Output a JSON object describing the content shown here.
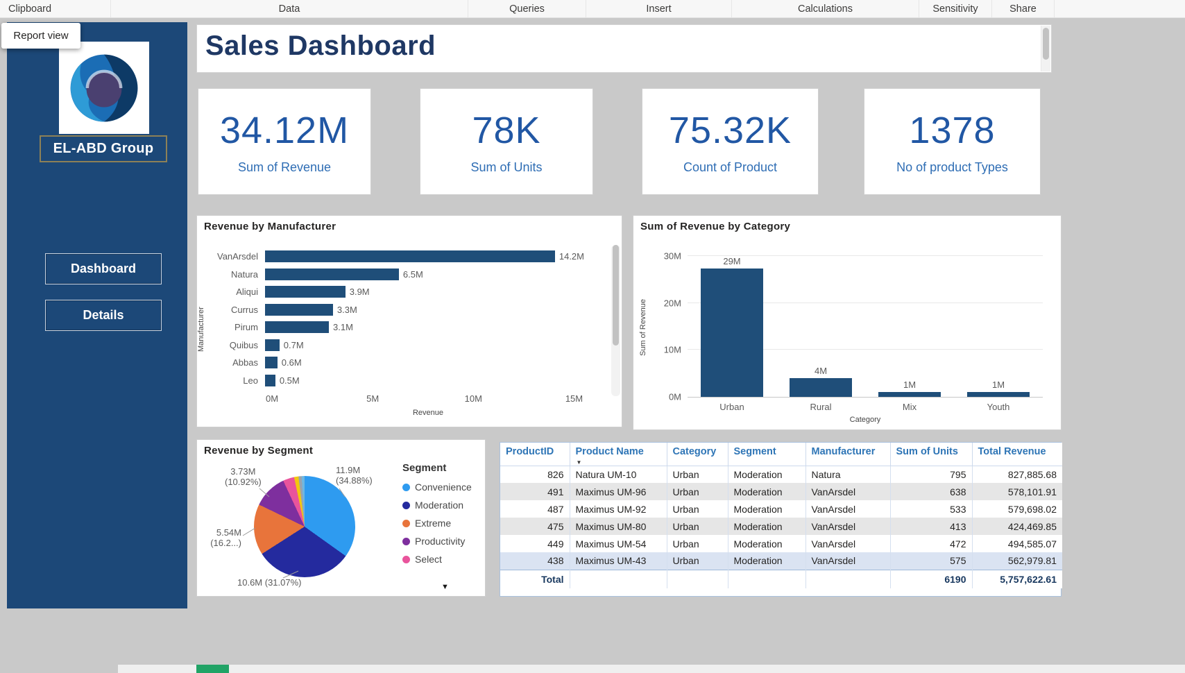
{
  "menu": {
    "items": [
      {
        "label": "Clipboard"
      },
      {
        "label": "Data"
      },
      {
        "label": "Queries"
      },
      {
        "label": "Insert"
      },
      {
        "label": "Calculations"
      },
      {
        "label": "Sensitivity"
      },
      {
        "label": "Share"
      }
    ]
  },
  "view_label": "Report view",
  "sidebar": {
    "brand": "EL-ABD Group",
    "nav": [
      {
        "label": "Dashboard"
      },
      {
        "label": "Details"
      }
    ]
  },
  "page": {
    "title": "Sales Dashboard"
  },
  "kpis": [
    {
      "value": "34.12M",
      "label": "Sum of Revenue"
    },
    {
      "value": "78K",
      "label": "Sum of Units"
    },
    {
      "value": "75.32K",
      "label": "Count of Product"
    },
    {
      "value": "1378",
      "label": "No of product Types"
    }
  ],
  "chart_data": [
    {
      "type": "bar",
      "orientation": "horizontal",
      "title": "Revenue by Manufacturer",
      "xlabel": "Revenue",
      "ylabel": "Manufacturer",
      "categories": [
        "VanArsdel",
        "Natura",
        "Aliqui",
        "Currus",
        "Pirum",
        "Quibus",
        "Abbas",
        "Leo"
      ],
      "values": [
        14.2,
        6.5,
        3.9,
        3.3,
        3.1,
        0.7,
        0.6,
        0.5
      ],
      "labels": [
        "14.2M",
        "6.5M",
        "3.9M",
        "3.3M",
        "3.1M",
        "0.7M",
        "0.6M",
        "0.5M"
      ],
      "x_ticks": [
        {
          "value": 0,
          "label": "0M"
        },
        {
          "value": 5,
          "label": "5M"
        },
        {
          "value": 10,
          "label": "10M"
        },
        {
          "value": 15,
          "label": "15M"
        }
      ],
      "xmax": 15.5,
      "bar_color": "#1F4E79",
      "grid": false
    },
    {
      "type": "bar",
      "orientation": "vertical",
      "title": "Sum of Revenue by Category",
      "xlabel": "Category",
      "ylabel": "Sum of Revenue",
      "categories": [
        "Urban",
        "Rural",
        "Mix",
        "Youth"
      ],
      "values": [
        29,
        4,
        1,
        1
      ],
      "labels": [
        "29M",
        "4M",
        "1M",
        "1M"
      ],
      "y_ticks": [
        {
          "value": 0,
          "label": "0M"
        },
        {
          "value": 10,
          "label": "10M"
        },
        {
          "value": 20,
          "label": "20M"
        },
        {
          "value": 30,
          "label": "30M"
        }
      ],
      "ymax": 30,
      "bar_color": "#1F4E79",
      "grid": true
    },
    {
      "type": "pie",
      "title": "Revenue by Segment",
      "legend_title": "Segment",
      "legend_position": "right",
      "slices": [
        {
          "name": "Convenience",
          "pct": 34.88,
          "color": "#2E9BF0",
          "callout": [
            "11.9M",
            "(34.88%)"
          ]
        },
        {
          "name": "Moderation",
          "pct": 31.07,
          "color": "#242A9E",
          "callout": [
            "10.6M (31.07%)"
          ]
        },
        {
          "name": "Extreme",
          "pct": 16.2,
          "color": "#E8743B",
          "callout": [
            "5.54M",
            "(16.2...)"
          ]
        },
        {
          "name": "Productivity",
          "pct": 10.92,
          "color": "#7E2F9E",
          "callout": [
            "3.73M",
            "(10.92%)"
          ]
        },
        {
          "name": "Select",
          "pct": 3.6,
          "color": "#E9549C",
          "callout": []
        }
      ],
      "other_slices": [
        {
          "color": "#F2C80F",
          "pct": 1.4
        },
        {
          "color": "#9AA3AD",
          "pct": 1.0
        },
        {
          "color": "#6FB7E0",
          "pct": 0.93
        }
      ]
    }
  ],
  "table": {
    "columns": [
      {
        "label": "ProductID"
      },
      {
        "label": "Product Name",
        "sort": true
      },
      {
        "label": "Category"
      },
      {
        "label": "Segment"
      },
      {
        "label": "Manufacturer"
      },
      {
        "label": "Sum of Units"
      },
      {
        "label": "Total Revenue"
      }
    ],
    "rows": [
      [
        "826",
        "Natura UM-10",
        "Urban",
        "Moderation",
        "Natura",
        "795",
        "827,885.68"
      ],
      [
        "491",
        "Maximus UM-96",
        "Urban",
        "Moderation",
        "VanArsdel",
        "638",
        "578,101.91"
      ],
      [
        "487",
        "Maximus UM-92",
        "Urban",
        "Moderation",
        "VanArsdel",
        "533",
        "579,698.02"
      ],
      [
        "475",
        "Maximus UM-80",
        "Urban",
        "Moderation",
        "VanArsdel",
        "413",
        "424,469.85"
      ],
      [
        "449",
        "Maximus UM-54",
        "Urban",
        "Moderation",
        "VanArsdel",
        "472",
        "494,585.07"
      ],
      [
        "438",
        "Maximus UM-43",
        "Urban",
        "Moderation",
        "VanArsdel",
        "575",
        "562,979.81"
      ]
    ],
    "total": {
      "label": "Total",
      "units": "6190",
      "revenue": "5,757,622.61"
    }
  },
  "colors": {
    "accent": "#1F4E79",
    "kpi_value": "#2157A4",
    "kpi_label": "#2E6DB4",
    "title": "#1F3864",
    "table_header": "#2E75B6"
  }
}
